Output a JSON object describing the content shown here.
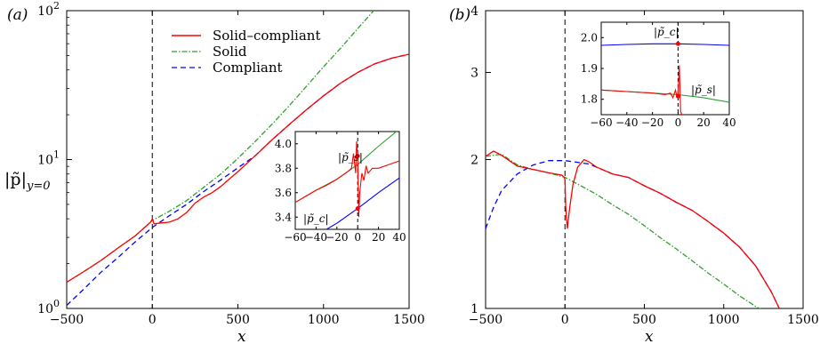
{
  "figure": {
    "ylabel_main": "|p̃|",
    "ylabel_sub": "y=0",
    "xlabel": "x"
  },
  "chart_data": [
    {
      "panel_label": "(a)",
      "type": "line",
      "xlim": [
        -500,
        1500
      ],
      "ylim": [
        1,
        100
      ],
      "yscale": "log",
      "xticks": [
        "-500",
        "0",
        "500",
        "1000",
        "1500"
      ],
      "yticks": [
        {
          "base": "10",
          "exp": "0"
        },
        {
          "base": "10",
          "exp": "1"
        },
        {
          "base": "10",
          "exp": "2"
        }
      ],
      "legend_position": "top-center",
      "series": [
        {
          "name": "Solid–compliant",
          "color": "#ff0000",
          "style": "solid",
          "x": [
            -500,
            -400,
            -300,
            -200,
            -100,
            -10,
            0,
            10,
            50,
            100,
            150,
            200,
            250,
            300,
            350,
            400,
            500,
            600,
            700,
            800,
            900,
            1000,
            1100,
            1200,
            1300,
            1400,
            1500
          ],
          "y": [
            1.5,
            1.77,
            2.1,
            2.55,
            3.07,
            3.8,
            4.0,
            3.7,
            3.75,
            3.8,
            4.0,
            4.4,
            5.1,
            5.6,
            6.0,
            6.6,
            8.3,
            10.6,
            13.6,
            17.2,
            21.6,
            26.8,
            32.6,
            38.5,
            44,
            48,
            51
          ]
        },
        {
          "name": "Solid",
          "color": "#2ca02c",
          "style": "dash-dot",
          "x": [
            -500,
            -400,
            -300,
            -200,
            -100,
            0,
            100,
            200,
            300,
            400,
            500,
            600,
            700,
            800,
            900,
            1000,
            1100,
            1200,
            1300
          ],
          "y": [
            1.5,
            1.77,
            2.1,
            2.55,
            3.07,
            3.9,
            4.5,
            5.3,
            6.5,
            8.0,
            10.2,
            13.2,
            17.3,
            23,
            31,
            42,
            56,
            76,
            102
          ]
        },
        {
          "name": "Compliant",
          "color": "#0000ff",
          "style": "dashed",
          "x": [
            -500,
            -400,
            -300,
            -200,
            -100,
            0,
            100,
            200,
            300,
            400,
            500,
            600,
            700,
            800,
            900,
            1000,
            1100,
            1200,
            1300,
            1400,
            1500
          ],
          "y": [
            1.05,
            1.35,
            1.75,
            2.2,
            2.8,
            3.5,
            4.2,
            5.0,
            6.1,
            7.3,
            8.8,
            10.6,
            13.6,
            17.2,
            21.6,
            26.8,
            32.6,
            38.5,
            44,
            48,
            51
          ]
        }
      ],
      "inset": {
        "xlim": [
          -60,
          40
        ],
        "ylim": [
          3.3,
          4.1
        ],
        "xticks": [
          "-60",
          "-40",
          "-20",
          "0",
          "20",
          "40"
        ],
        "yticks": [
          "3.4",
          "3.6",
          "3.8",
          "4.0"
        ],
        "annotations": [
          {
            "text": "|p̃_s|",
            "x": 0,
            "y": 3.9
          },
          {
            "text": "|p̃_c|",
            "x": 0,
            "y": 3.47
          }
        ],
        "series": [
          {
            "name": "Solid–compliant",
            "color": "#ff0000",
            "x": [
              -60,
              -50,
              -40,
              -30,
              -20,
              -10,
              -6,
              -4,
              -2,
              -1,
              0,
              1,
              2,
              4,
              6,
              8,
              10,
              14,
              20,
              30,
              40
            ],
            "y": [
              3.52,
              3.57,
              3.62,
              3.66,
              3.71,
              3.77,
              3.8,
              3.92,
              3.76,
              4.02,
              3.9,
              3.4,
              3.6,
              3.76,
              3.7,
              3.82,
              3.76,
              3.8,
              3.8,
              3.83,
              3.86
            ]
          },
          {
            "name": "Solid",
            "color": "#2ca02c",
            "x": [
              -60,
              -40,
              -20,
              0,
              20,
              40
            ],
            "y": [
              3.52,
              3.62,
              3.71,
              3.83,
              3.98,
              4.12
            ]
          },
          {
            "name": "Compliant",
            "color": "#0000ff",
            "x": [
              -30,
              -20,
              0,
              20,
              40
            ],
            "y": [
              3.3,
              3.35,
              3.47,
              3.6,
              3.72
            ]
          }
        ]
      }
    },
    {
      "panel_label": "(b)",
      "type": "line",
      "xlim": [
        -500,
        1500
      ],
      "ylim": [
        1,
        4
      ],
      "yscale": "log",
      "xticks": [
        "-500",
        "0",
        "500",
        "1000",
        "1500"
      ],
      "yticks": [
        {
          "value": 1,
          "label": "1"
        },
        {
          "value": 2,
          "label": "2"
        },
        {
          "value": 3,
          "label": "3"
        },
        {
          "value": 4,
          "label": "4"
        }
      ],
      "series": [
        {
          "name": "Solid–compliant",
          "color": "#ff0000",
          "style": "solid",
          "x": [
            -500,
            -450,
            -400,
            -300,
            -200,
            -100,
            -20,
            -5,
            0,
            5,
            15,
            30,
            50,
            80,
            120,
            150,
            200,
            300,
            400,
            500,
            600,
            700,
            800,
            900,
            1000,
            1100,
            1200,
            1300,
            1350
          ],
          "y": [
            2.03,
            2.08,
            2.04,
            1.94,
            1.91,
            1.88,
            1.86,
            1.84,
            1.82,
            1.6,
            1.45,
            1.6,
            1.78,
            1.93,
            2.0,
            1.98,
            1.93,
            1.87,
            1.84,
            1.77,
            1.71,
            1.64,
            1.58,
            1.5,
            1.42,
            1.33,
            1.22,
            1.08,
            1.0
          ]
        },
        {
          "name": "Solid",
          "color": "#2ca02c",
          "style": "dash-dot",
          "x": [
            -500,
            -400,
            -300,
            -200,
            -100,
            0,
            100,
            200,
            300,
            400,
            500,
            600,
            700,
            800,
            900,
            1000,
            1100,
            1200,
            1250
          ],
          "y": [
            2.03,
            2.05,
            1.95,
            1.91,
            1.88,
            1.84,
            1.77,
            1.7,
            1.62,
            1.55,
            1.47,
            1.39,
            1.32,
            1.25,
            1.18,
            1.12,
            1.06,
            1.01,
            0.99
          ]
        },
        {
          "name": "Compliant",
          "color": "#0000ff",
          "style": "dashed",
          "x": [
            -500,
            -450,
            -400,
            -300,
            -200,
            -100,
            0,
            50,
            100,
            150,
            200,
            300,
            400,
            500,
            600,
            700,
            800,
            900,
            1000,
            1100,
            1200,
            1300,
            1350
          ],
          "y": [
            1.45,
            1.6,
            1.73,
            1.87,
            1.95,
            1.99,
            1.99,
            1.98,
            1.97,
            1.96,
            1.93,
            1.87,
            1.84,
            1.77,
            1.71,
            1.64,
            1.58,
            1.5,
            1.42,
            1.33,
            1.22,
            1.08,
            1.0
          ]
        }
      ],
      "inset": {
        "xlim": [
          -60,
          40
        ],
        "ylim": [
          1.75,
          2.05
        ],
        "xticks": [
          "-60",
          "-40",
          "-20",
          "0",
          "20",
          "40"
        ],
        "yticks": [
          "1.8",
          "1.9",
          "2.0"
        ],
        "annotations": [
          {
            "text": "|p̃_c|",
            "x": 0,
            "y": 1.98
          },
          {
            "text": "|p̃_s|",
            "x": 0,
            "y": 1.81
          }
        ],
        "series": [
          {
            "name": "Solid–compliant",
            "color": "#ff0000",
            "x": [
              -60,
              -40,
              -20,
              -10,
              -6,
              -4,
              -2,
              -1,
              0,
              1,
              2,
              3
            ],
            "y": [
              1.83,
              1.825,
              1.82,
              1.815,
              1.82,
              1.805,
              1.83,
              1.81,
              1.82,
              1.91,
              1.76,
              1.75
            ]
          },
          {
            "name": "Solid",
            "color": "#2ca02c",
            "x": [
              -60,
              -40,
              -20,
              0,
              20,
              40
            ],
            "y": [
              1.83,
              1.825,
              1.82,
              1.815,
              1.805,
              1.79
            ]
          },
          {
            "name": "Compliant",
            "color": "#0000ff",
            "x": [
              -60,
              -40,
              -20,
              0,
              20,
              40
            ],
            "y": [
              1.975,
              1.978,
              1.98,
              1.98,
              1.978,
              1.975
            ]
          }
        ]
      }
    }
  ]
}
